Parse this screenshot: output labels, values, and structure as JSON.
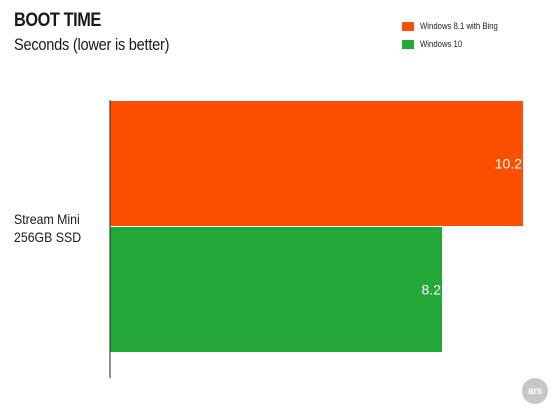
{
  "chart_data": {
    "type": "bar",
    "orientation": "horizontal",
    "title": "BOOT TIME",
    "subtitle": "Seconds (lower is better)",
    "categories": [
      "Stream Mini 256GB SSD"
    ],
    "category_lines": [
      "Stream Mini",
      "256GB SSD"
    ],
    "series": [
      {
        "name": "Windows 8.1 with Bing",
        "color": "#fc4f00",
        "values": [
          10.2
        ],
        "labels": [
          "10.2"
        ]
      },
      {
        "name": "Windows 10",
        "color": "#25a83a",
        "values": [
          8.2
        ],
        "labels": [
          "8.2"
        ]
      }
    ],
    "xlim": [
      0,
      10.2
    ],
    "grid": false,
    "legend_position": "top-right",
    "brand_logo": "ars"
  }
}
